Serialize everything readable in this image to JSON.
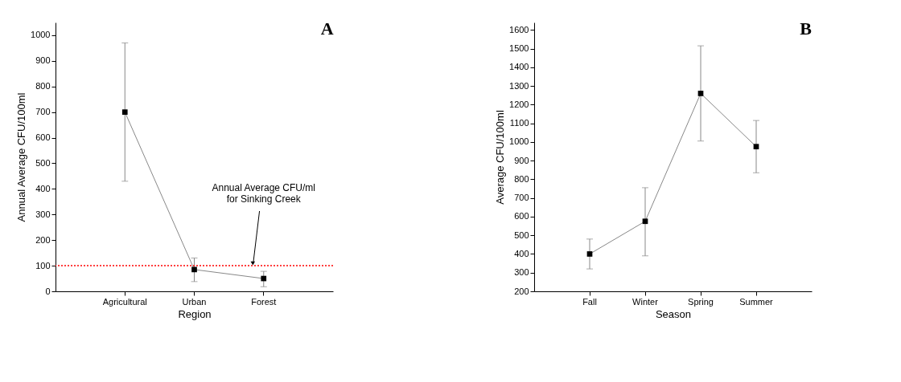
{
  "chart_data": [
    {
      "type": "line",
      "title": "A",
      "xlabel": "Region",
      "ylabel": "Annual Average CFU/100ml",
      "categories": [
        "Agricultural",
        "Urban",
        "Forest"
      ],
      "series": [
        {
          "color": "#000000",
          "values": [
            700,
            85,
            50
          ],
          "errors": [
            [
              430,
              970
            ],
            [
              38,
              130
            ],
            [
              18,
              78
            ]
          ]
        }
      ],
      "ylim": [
        0,
        1050
      ],
      "yticks": [
        0,
        100,
        200,
        300,
        400,
        500,
        600,
        700,
        800,
        900,
        1000
      ],
      "marker": "square",
      "grid": false,
      "ref_lines": [
        {
          "axis": "y",
          "value": 100,
          "color": "#ff0000",
          "line_style": "dotted",
          "label": "Annual Average CFU/ml\nfor Sinking Creek"
        }
      ]
    },
    {
      "type": "line",
      "title": "B",
      "xlabel": "Season",
      "ylabel": "Average CFU/100ml",
      "categories": [
        "Fall",
        "Winter",
        "Spring",
        "Summer"
      ],
      "series": [
        {
          "color": "#000000",
          "values": [
            400,
            575,
            1260,
            975
          ],
          "errors": [
            [
              320,
              480
            ],
            [
              390,
              755
            ],
            [
              1005,
              1515
            ],
            [
              835,
              1115
            ]
          ]
        }
      ],
      "ylim": [
        200,
        1640
      ],
      "yticks": [
        200,
        300,
        400,
        500,
        600,
        700,
        800,
        900,
        1000,
        1100,
        1200,
        1300,
        1400,
        1500,
        1600
      ],
      "marker": "square",
      "grid": false
    }
  ]
}
